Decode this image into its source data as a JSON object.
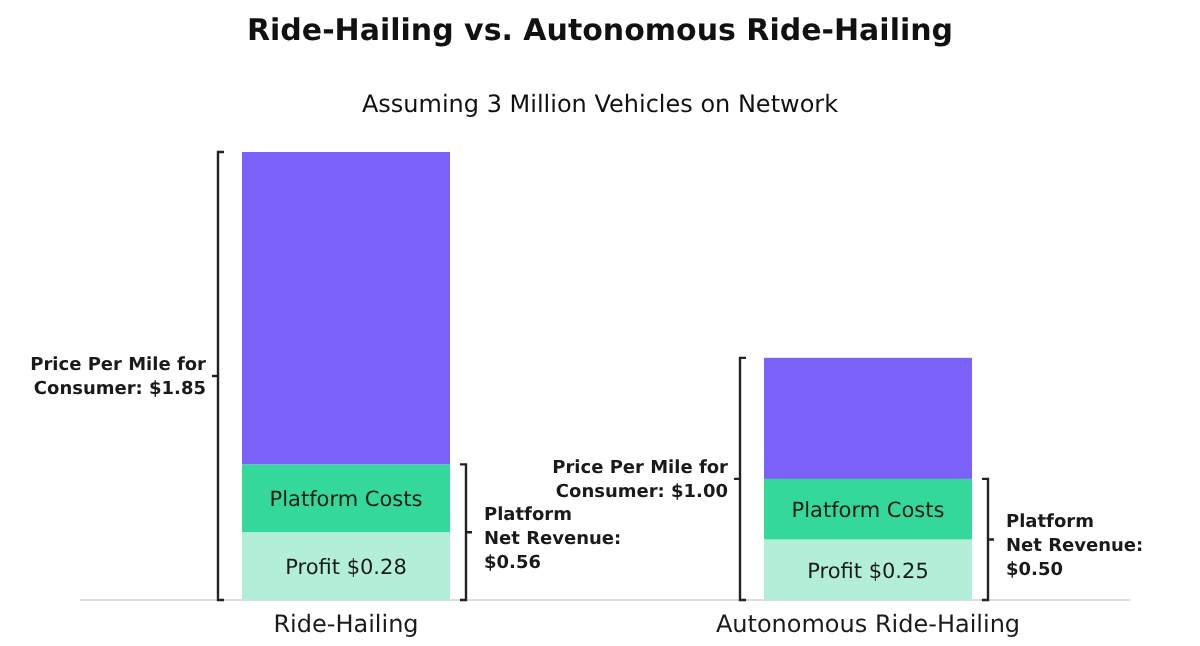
{
  "chart_data": {
    "type": "bar",
    "stacked": true,
    "title": "Ride-Hailing vs. Autonomous Ride-Hailing",
    "subtitle": "Assuming 3 Million Vehicles on Network",
    "categories": [
      "Ride-Hailing",
      "Autonomous Ride-Hailing"
    ],
    "series": [
      {
        "color": "#b3efd8",
        "values": [
          0.28,
          0.25
        ],
        "value_labels": [
          "Profit $0.28",
          "Profit $0.25"
        ]
      },
      {
        "name": "Platform Costs",
        "color": "#34d89a",
        "values": [
          0.28,
          0.25
        ]
      },
      {
        "color": "#7b61f8",
        "values": [
          1.29,
          0.5
        ]
      }
    ],
    "ylim": [
      0,
      1.85
    ],
    "annotations": [
      "Price Per Mile for Consumer: $1.85",
      "Platform Net Revenue: $0.56",
      "Price Per Mile for Consumer: $1.00",
      "Platform Net Revenue: $0.50"
    ]
  }
}
